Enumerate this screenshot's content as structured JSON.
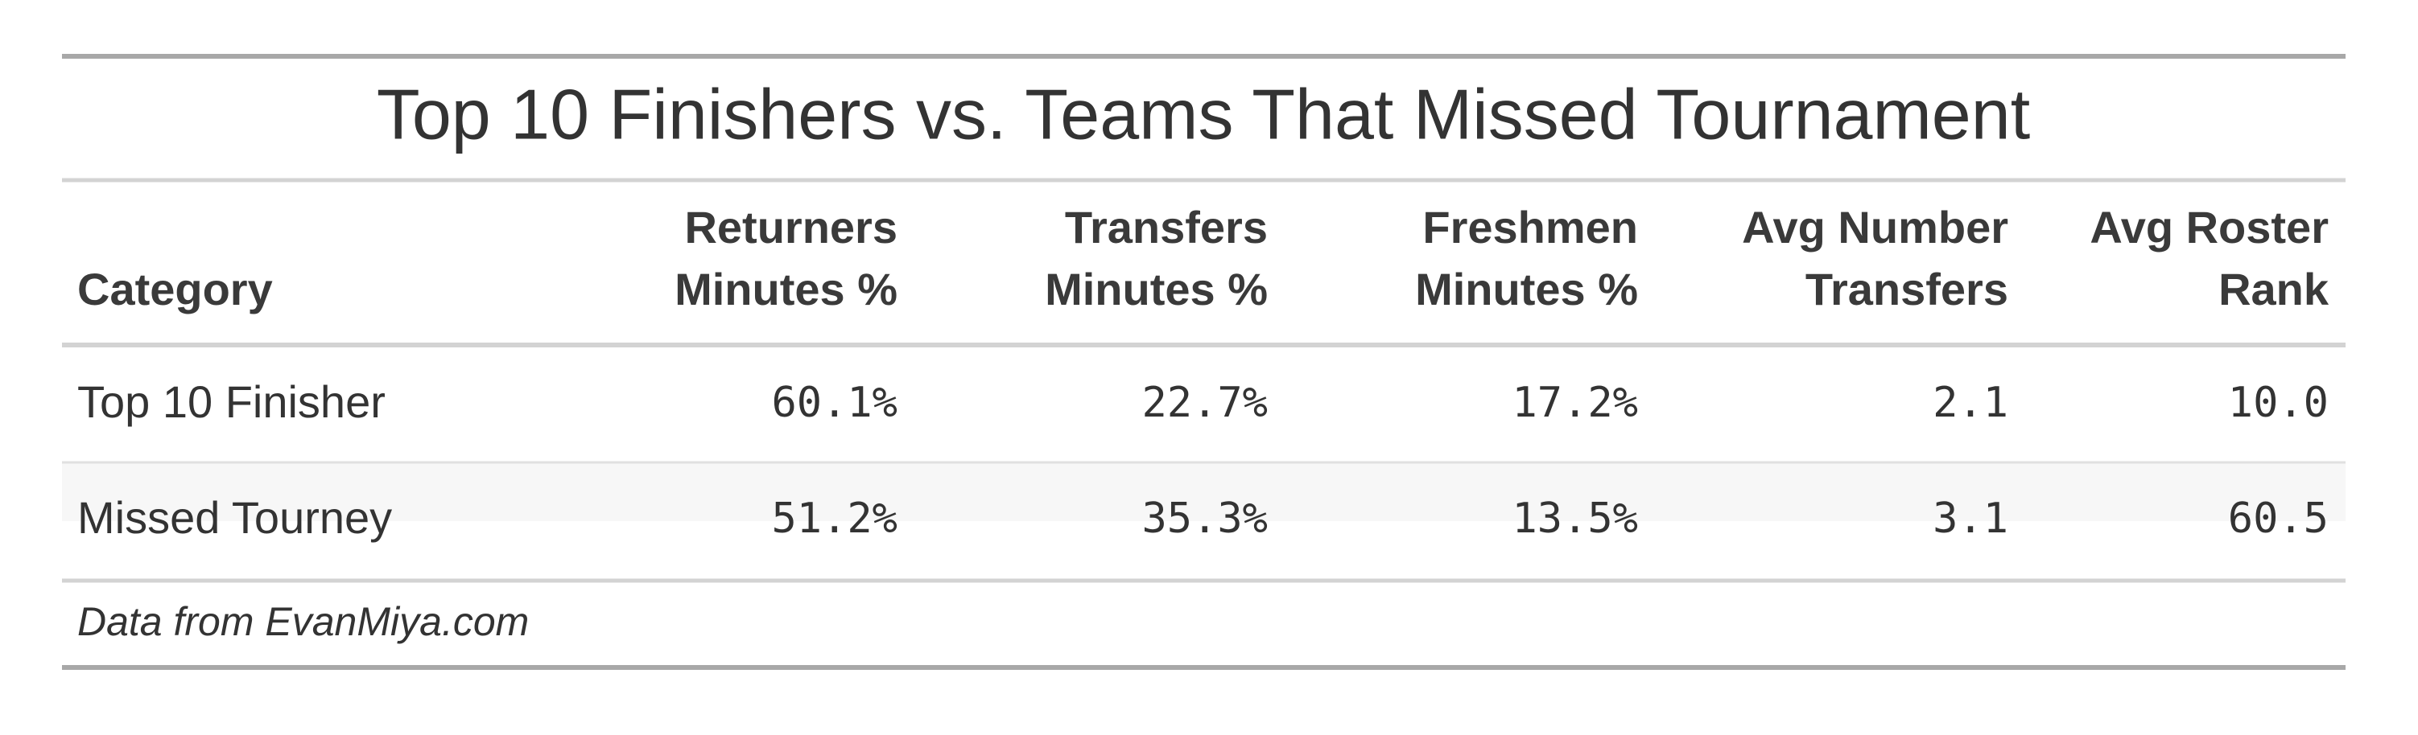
{
  "title": "Top 10 Finishers vs. Teams That Missed Tournament",
  "table": {
    "header": [
      [
        "Category"
      ],
      [
        "Returners",
        "Minutes %"
      ],
      [
        "Transfers",
        "Minutes %"
      ],
      [
        "Freshmen",
        "Minutes %"
      ],
      [
        "Avg Number",
        "Transfers"
      ],
      [
        "Avg Roster",
        "Rank"
      ]
    ],
    "rows": [
      [
        "Top 10 Finisher",
        "60.1%",
        "22.7%",
        "17.2%",
        "2.1",
        "10.0"
      ],
      [
        "Missed Tourney",
        "51.2%",
        "35.3%",
        "13.5%",
        "3.1",
        "60.5"
      ]
    ]
  },
  "footnote": "Data from EvanMiya.com"
}
